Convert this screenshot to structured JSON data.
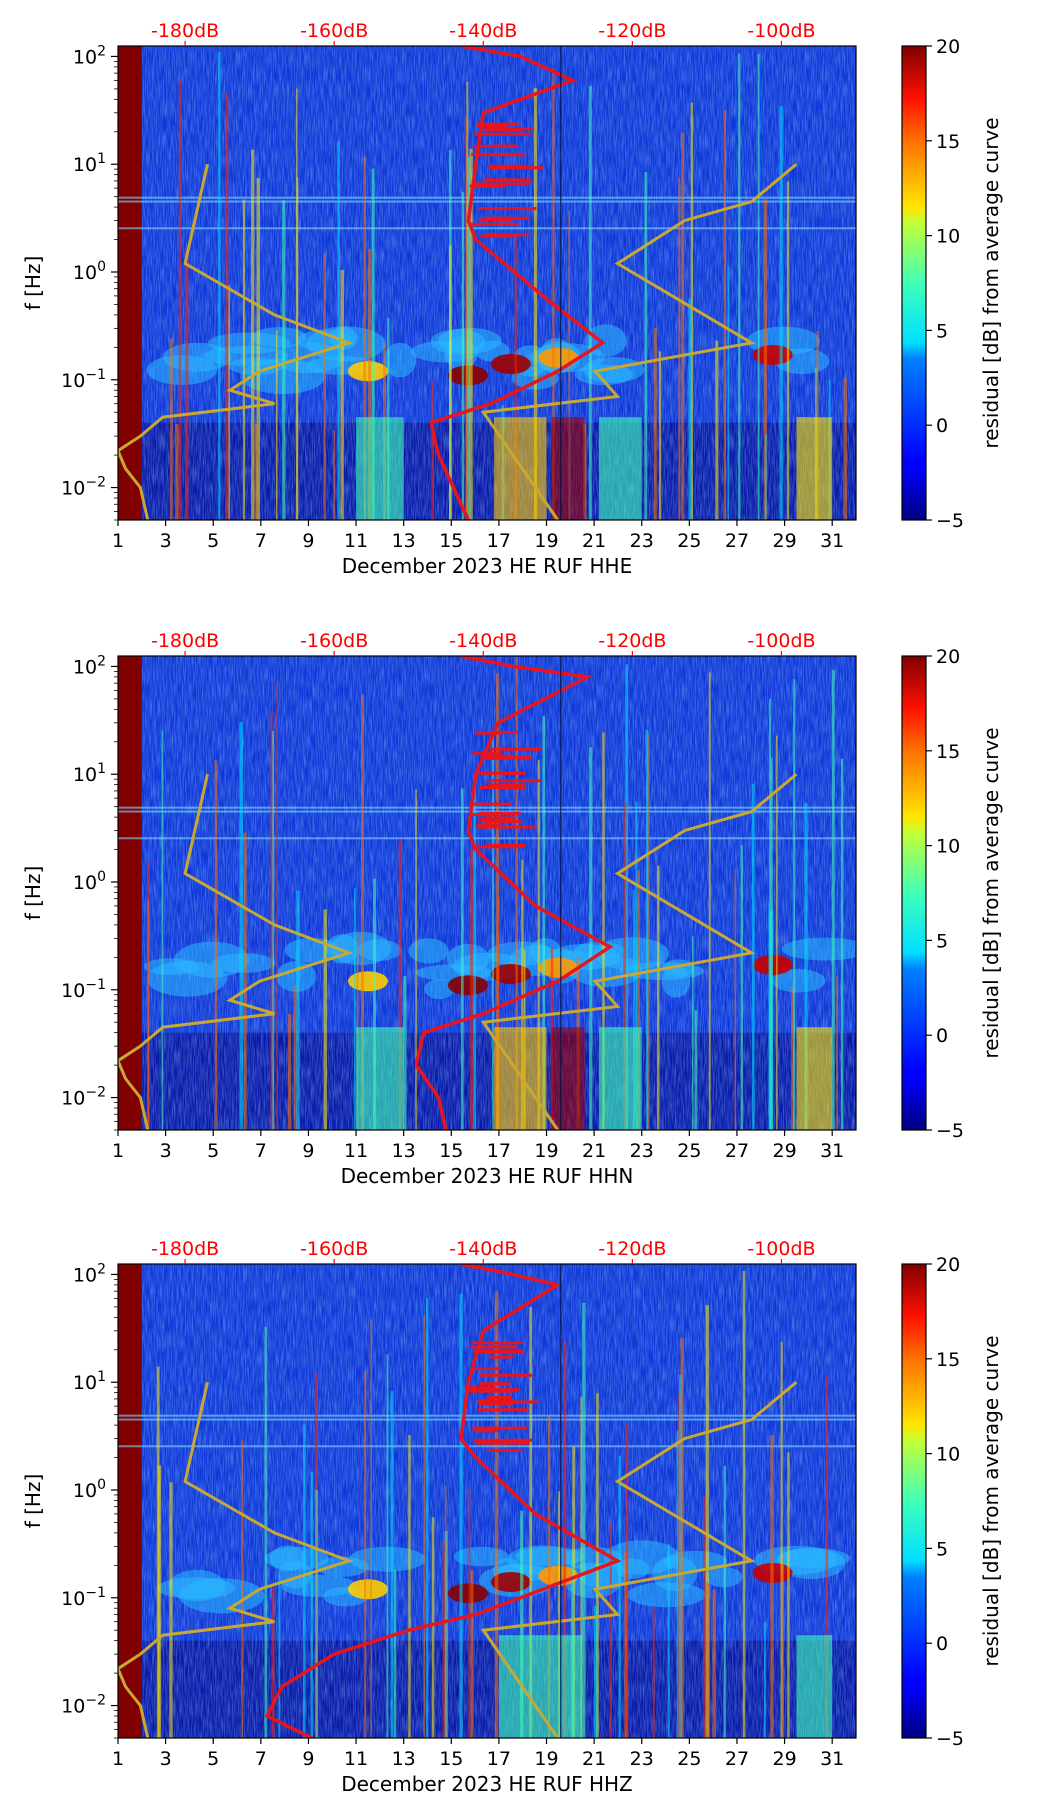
{
  "chart_data": [
    {
      "type": "heatmap",
      "channel": "HHE",
      "xlabel": "December 2023 HE RUF  HHE",
      "ylabel": "f [Hz]",
      "xlim": [
        1,
        32
      ],
      "x_ticks": [
        1,
        3,
        5,
        7,
        9,
        11,
        13,
        15,
        17,
        19,
        21,
        23,
        25,
        27,
        29,
        31
      ],
      "x_tick_labels": [
        "1",
        "3",
        "5",
        "7",
        "9",
        "11",
        "13",
        "15",
        "17",
        "19",
        "21",
        "23",
        "25",
        "27",
        "29",
        "31"
      ],
      "ylim": [
        0.005,
        125
      ],
      "y_scale": "log",
      "y_ticks": [
        0.01,
        0.1,
        1,
        10,
        100
      ],
      "top_axis_labels": [
        "-180dB",
        "-160dB",
        "-140dB",
        "-120dB",
        "-100dB"
      ],
      "top_axis_values": [
        -180,
        -160,
        -140,
        -120,
        -100
      ],
      "top_axis_range": [
        -189,
        -90
      ],
      "colorbar": {
        "label": "residual [dB] from average curve",
        "range": [
          -5,
          20
        ],
        "ticks": [
          -5,
          0,
          5,
          10,
          15,
          20
        ],
        "tick_labels": [
          "−5",
          "0",
          "5",
          "10",
          "15",
          "20"
        ]
      },
      "red_curve": [
        [
          -143,
          125
        ],
        [
          -135,
          100
        ],
        [
          -128,
          60
        ],
        [
          -140,
          30
        ],
        [
          -141,
          10
        ],
        [
          -142,
          3
        ],
        [
          -141,
          2
        ],
        [
          -132,
          0.6
        ],
        [
          -124,
          0.22
        ],
        [
          -130,
          0.12
        ],
        [
          -139,
          0.06
        ],
        [
          -147,
          0.04
        ],
        [
          -146,
          0.02
        ],
        [
          -144,
          0.01
        ],
        [
          -142,
          0.005
        ]
      ],
      "gold_curve": [
        [
          -177,
          10
        ],
        [
          -180,
          1.2
        ],
        [
          -168,
          0.4
        ],
        [
          -158,
          0.22
        ],
        [
          -170,
          0.12
        ],
        [
          -174,
          0.08
        ],
        [
          -168,
          0.06
        ],
        [
          -183,
          0.045
        ],
        [
          -186,
          0.03
        ],
        [
          -189,
          0.022
        ],
        [
          -188,
          0.015
        ],
        [
          -186,
          0.01
        ],
        [
          -185,
          0.005
        ]
      ],
      "gold_curve_2": [
        [
          -98,
          10
        ],
        [
          -104,
          4.5
        ],
        [
          -113,
          3
        ],
        [
          -122,
          1.2
        ],
        [
          -104,
          0.22
        ],
        [
          -125,
          0.12
        ],
        [
          -122,
          0.07
        ],
        [
          -140,
          0.05
        ],
        [
          -130,
          0.005
        ]
      ]
    },
    {
      "type": "heatmap",
      "channel": "HHN",
      "xlabel": "December 2023 HE RUF  HHN",
      "ylabel": "f [Hz]",
      "xlim": [
        1,
        32
      ],
      "x_ticks": [
        1,
        3,
        5,
        7,
        9,
        11,
        13,
        15,
        17,
        19,
        21,
        23,
        25,
        27,
        29,
        31
      ],
      "x_tick_labels": [
        "1",
        "3",
        "5",
        "7",
        "9",
        "11",
        "13",
        "15",
        "17",
        "19",
        "21",
        "23",
        "25",
        "27",
        "29",
        "31"
      ],
      "ylim": [
        0.005,
        125
      ],
      "y_scale": "log",
      "y_ticks": [
        0.01,
        0.1,
        1,
        10,
        100
      ],
      "top_axis_labels": [
        "-180dB",
        "-160dB",
        "-140dB",
        "-120dB",
        "-100dB"
      ],
      "top_axis_values": [
        -180,
        -160,
        -140,
        -120,
        -100
      ],
      "top_axis_range": [
        -189,
        -90
      ],
      "colorbar": {
        "label": "residual [dB] from average curve",
        "range": [
          -5,
          20
        ],
        "ticks": [
          -5,
          0,
          5,
          10,
          15,
          20
        ],
        "tick_labels": [
          "−5",
          "0",
          "5",
          "10",
          "15",
          "20"
        ]
      },
      "red_curve": [
        [
          -143,
          125
        ],
        [
          -136,
          100
        ],
        [
          -126,
          80
        ],
        [
          -138,
          30
        ],
        [
          -141,
          10
        ],
        [
          -142,
          3
        ],
        [
          -141,
          2
        ],
        [
          -133,
          0.6
        ],
        [
          -123,
          0.25
        ],
        [
          -130,
          0.12
        ],
        [
          -140,
          0.06
        ],
        [
          -148,
          0.04
        ],
        [
          -149,
          0.02
        ],
        [
          -146,
          0.01
        ],
        [
          -145,
          0.005
        ]
      ],
      "gold_curve": [
        [
          -177,
          10
        ],
        [
          -180,
          1.2
        ],
        [
          -168,
          0.4
        ],
        [
          -158,
          0.22
        ],
        [
          -170,
          0.12
        ],
        [
          -174,
          0.08
        ],
        [
          -168,
          0.06
        ],
        [
          -183,
          0.045
        ],
        [
          -186,
          0.03
        ],
        [
          -189,
          0.022
        ],
        [
          -188,
          0.015
        ],
        [
          -186,
          0.01
        ],
        [
          -185,
          0.005
        ]
      ],
      "gold_curve_2": [
        [
          -98,
          10
        ],
        [
          -104,
          4.5
        ],
        [
          -113,
          3
        ],
        [
          -122,
          1.2
        ],
        [
          -104,
          0.22
        ],
        [
          -125,
          0.12
        ],
        [
          -122,
          0.07
        ],
        [
          -140,
          0.05
        ],
        [
          -130,
          0.005
        ]
      ]
    },
    {
      "type": "heatmap",
      "channel": "HHZ",
      "xlabel": "December 2023 HE RUF  HHZ",
      "ylabel": "f [Hz]",
      "xlim": [
        1,
        32
      ],
      "x_ticks": [
        1,
        3,
        5,
        7,
        9,
        11,
        13,
        15,
        17,
        19,
        21,
        23,
        25,
        27,
        29,
        31
      ],
      "x_tick_labels": [
        "1",
        "3",
        "5",
        "7",
        "9",
        "11",
        "13",
        "15",
        "17",
        "19",
        "21",
        "23",
        "25",
        "27",
        "29",
        "31"
      ],
      "ylim": [
        0.005,
        125
      ],
      "y_scale": "log",
      "y_ticks": [
        0.01,
        0.1,
        1,
        10,
        100
      ],
      "top_axis_labels": [
        "-180dB",
        "-160dB",
        "-140dB",
        "-120dB",
        "-100dB"
      ],
      "top_axis_values": [
        -180,
        -160,
        -140,
        -120,
        -100
      ],
      "top_axis_range": [
        -189,
        -90
      ],
      "colorbar": {
        "label": "residual [dB] from average curve",
        "range": [
          -5,
          20
        ],
        "ticks": [
          -5,
          0,
          5,
          10,
          15,
          20
        ],
        "tick_labels": [
          "−5",
          "0",
          "5",
          "10",
          "15",
          "20"
        ]
      },
      "red_curve": [
        [
          -143,
          125
        ],
        [
          -136,
          100
        ],
        [
          -130,
          80
        ],
        [
          -140,
          30
        ],
        [
          -142,
          10
        ],
        [
          -143,
          3
        ],
        [
          -141,
          2
        ],
        [
          -133,
          0.6
        ],
        [
          -122,
          0.22
        ],
        [
          -132,
          0.12
        ],
        [
          -141,
          0.07
        ],
        [
          -150,
          0.05
        ],
        [
          -160,
          0.03
        ],
        [
          -167,
          0.015
        ],
        [
          -169,
          0.008
        ],
        [
          -163,
          0.005
        ]
      ],
      "gold_curve": [
        [
          -177,
          10
        ],
        [
          -180,
          1.2
        ],
        [
          -168,
          0.4
        ],
        [
          -158,
          0.22
        ],
        [
          -170,
          0.12
        ],
        [
          -174,
          0.08
        ],
        [
          -168,
          0.06
        ],
        [
          -183,
          0.045
        ],
        [
          -186,
          0.03
        ],
        [
          -189,
          0.022
        ],
        [
          -188,
          0.015
        ],
        [
          -186,
          0.01
        ],
        [
          -185,
          0.005
        ]
      ],
      "gold_curve_2": [
        [
          -98,
          10
        ],
        [
          -104,
          4.5
        ],
        [
          -113,
          3
        ],
        [
          -122,
          1.2
        ],
        [
          -104,
          0.22
        ],
        [
          -125,
          0.12
        ],
        [
          -122,
          0.07
        ],
        [
          -140,
          0.05
        ],
        [
          -130,
          0.005
        ]
      ]
    }
  ],
  "colors": {
    "red_curve": "#e8141e",
    "gold_curve": "#c8a832",
    "db_label": "#ff0000"
  }
}
